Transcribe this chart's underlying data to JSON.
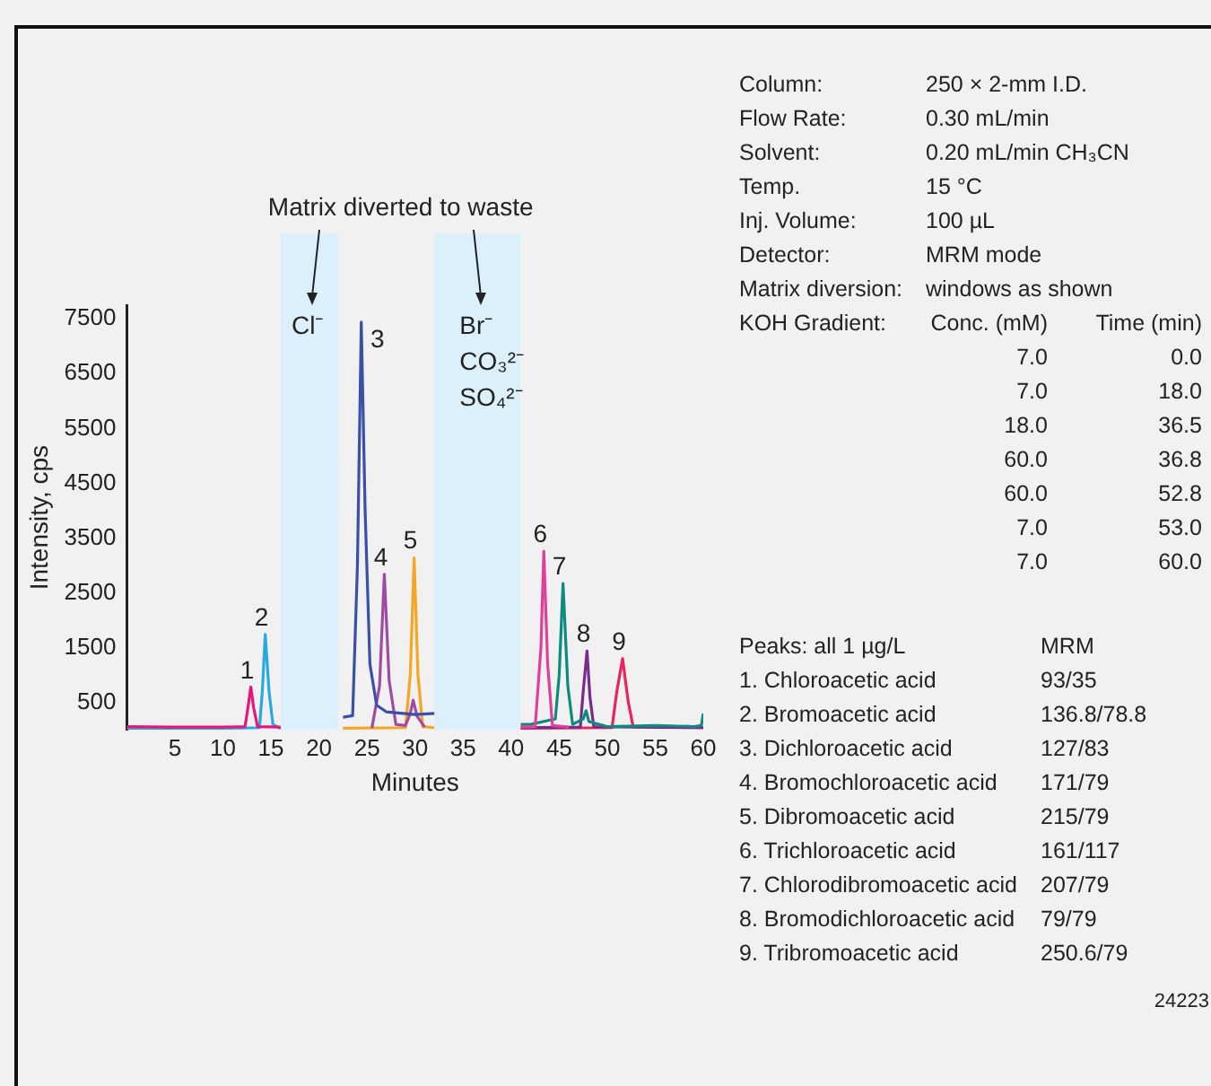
{
  "chart_data": {
    "type": "line",
    "xlabel": "Minutes",
    "ylabel": "Intensity, cps",
    "xlim": [
      0,
      60
    ],
    "xticks": [
      5,
      10,
      15,
      20,
      25,
      30,
      35,
      40,
      45,
      50,
      55,
      60
    ],
    "ylim": [
      0,
      7750
    ],
    "yticks": [
      500,
      1500,
      2500,
      3500,
      4500,
      5500,
      6500,
      7500
    ],
    "grid": false,
    "legend": false,
    "marker": "none",
    "line_style": "solid",
    "bands": [
      {
        "axis": "x",
        "from": 16,
        "to": 22,
        "label": "Cl⁻",
        "color": "#dcf0fb"
      },
      {
        "axis": "x",
        "from": 32,
        "to": 41,
        "label": "Br⁻\nCO₃²⁻\nSO₄²⁻",
        "color": "#dcf0fb"
      }
    ],
    "series": [
      {
        "name": "1",
        "color": "#e8157a",
        "x": [
          0,
          5,
          10,
          12.3,
          12.6,
          12.9,
          13.2,
          13.6,
          16
        ],
        "values": [
          60,
          50,
          50,
          60,
          400,
          780,
          400,
          60,
          50
        ]
      },
      {
        "name": "2",
        "color": "#2aa8e0",
        "x": [
          0,
          10,
          13.8,
          14.1,
          14.4,
          14.8,
          15.2,
          16
        ],
        "values": [
          30,
          30,
          40,
          700,
          1740,
          700,
          100,
          20
        ]
      },
      {
        "name": "3",
        "color": "#3a4fa8",
        "x": [
          22.5,
          23.5,
          24,
          24.4,
          24.8,
          25.3,
          26,
          27,
          30,
          32
        ],
        "values": [
          230,
          260,
          3000,
          7440,
          4000,
          1200,
          450,
          330,
          280,
          300
        ]
      },
      {
        "name": "4",
        "color": "#a04aa8",
        "x": [
          25.5,
          26.3,
          26.8,
          27.3,
          28,
          29,
          29.5,
          29.8,
          30.2,
          31
        ],
        "values": [
          30,
          800,
          2840,
          900,
          100,
          80,
          300,
          540,
          250,
          50
        ]
      },
      {
        "name": "5",
        "color": "#f6a623",
        "x": [
          22.5,
          29,
          29.5,
          29.9,
          30.3,
          30.8,
          32
        ],
        "values": [
          30,
          40,
          1000,
          3140,
          1000,
          60,
          40
        ]
      },
      {
        "name": "6",
        "color": "#e0409a",
        "x": [
          41,
          42.5,
          43.1,
          43.4,
          43.8,
          44.3,
          46
        ],
        "values": [
          50,
          60,
          1500,
          3260,
          1200,
          80,
          50
        ]
      },
      {
        "name": "7",
        "color": "#0e8a7e",
        "x": [
          41,
          42,
          44.6,
          45,
          45.4,
          45.9,
          46.4,
          47.5,
          47.8,
          48.1,
          50,
          55,
          59,
          59.8,
          60
        ],
        "values": [
          100,
          100,
          200,
          1000,
          2670,
          800,
          100,
          200,
          350,
          150,
          60,
          80,
          60,
          80,
          300
        ]
      },
      {
        "name": "8",
        "color": "#7a2a8a",
        "x": [
          41,
          47.2,
          47.5,
          47.9,
          48.2,
          48.6,
          60
        ],
        "values": [
          40,
          50,
          700,
          1440,
          600,
          60,
          40
        ]
      },
      {
        "name": "9",
        "color": "#e8245a",
        "x": [
          41,
          50.5,
          51,
          51.6,
          52.2,
          52.7,
          60
        ],
        "values": [
          30,
          40,
          700,
          1300,
          500,
          60,
          40
        ]
      }
    ],
    "annotations": [
      "Matrix diverted to waste",
      "Column:\t250 × 2-mm I.D.",
      "Flow Rate:\t0.30 mL/min",
      "Solvent:\t0.20 mL/min CH₃CN",
      "Temp.\t15 °C",
      "Inj. Volume:\t100 µL",
      "Detector:\tMRM mode",
      "Matrix diversion:\twindows as shown",
      "KOH Gradient:\tConc. (mM)\tTime (min)",
      "\t7.0\t0.0",
      "\t7.0\t18.0",
      "\t18.0\t36.5",
      "\t60.0\t36.8",
      "\t60.0\t52.8",
      "\t7.0\t53.0",
      "\t7.0\t60.0",
      "Peaks: all 1 µg/L\tMRM",
      "1. Chloroacetic acid\t93/35",
      "2. Bromoacetic acid\t136.8/78.8",
      "3. Dichloroacetic acid\t127/83",
      "4. Bromochloroacetic acid\t171/79",
      "5. Dibromoacetic acid\t215/79",
      "6. Trichloroacetic acid\t161/117",
      "7. Chlorodibromoacetic acid\t207/79",
      "8. Bromodichloroacetic acid\t79/79",
      "9. Tribromoacetic acid\t250.6/79",
      "24223"
    ]
  }
}
